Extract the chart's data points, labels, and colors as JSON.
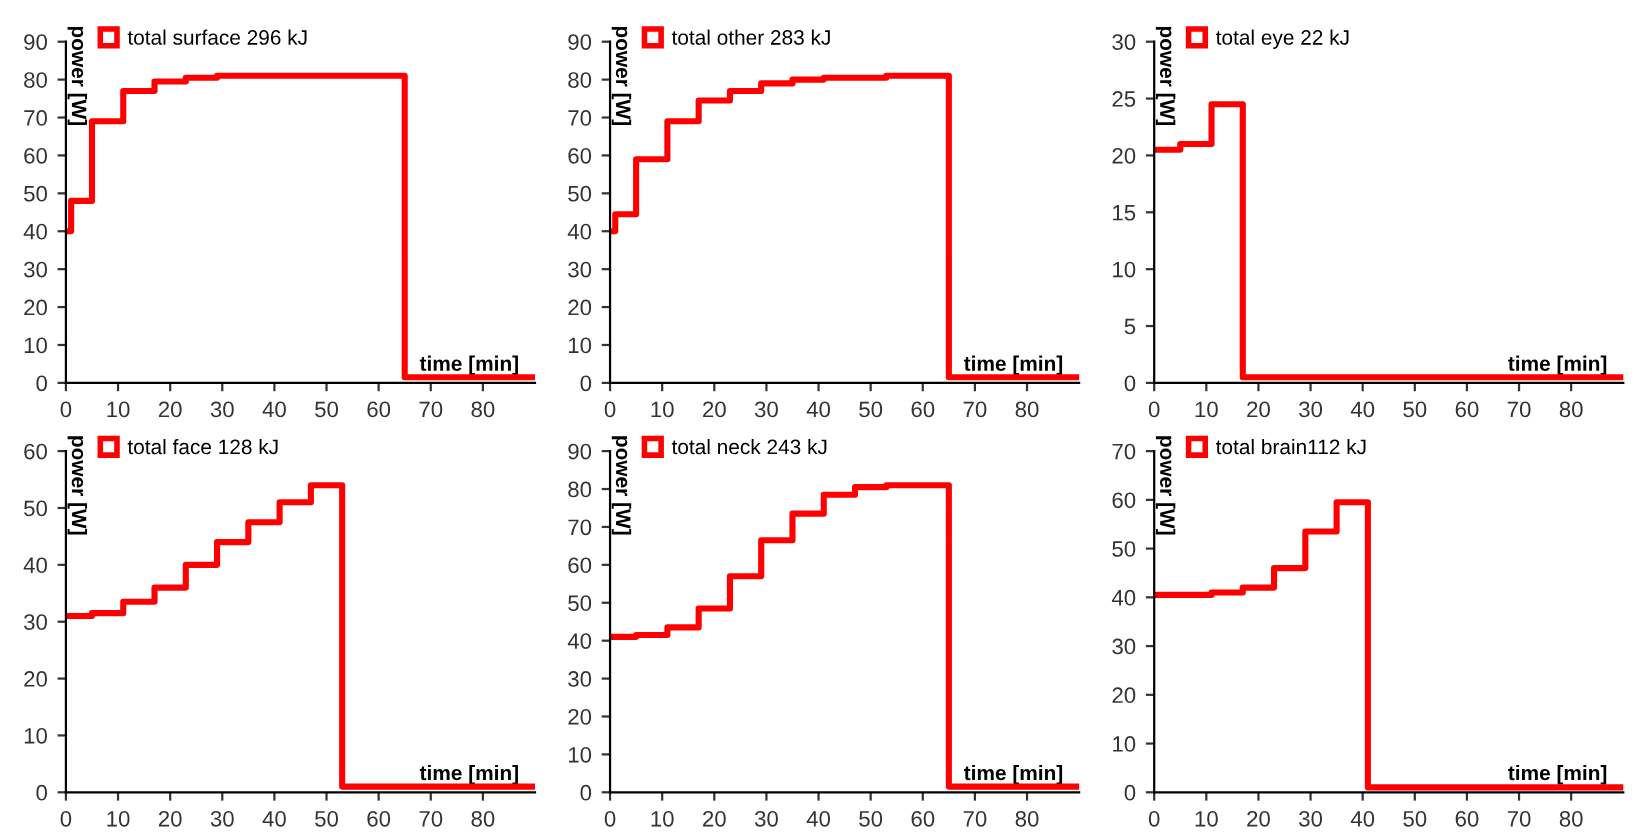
{
  "chart_data": [
    {
      "type": "step",
      "xlabel": "time [min]",
      "ylabel": "power [W]",
      "x": [
        0,
        1,
        5,
        11,
        17,
        23,
        29,
        65,
        90
      ],
      "series": [
        {
          "name": "total surface 296 kJ",
          "color": "#ff0000",
          "values": [
            40,
            48,
            69,
            77,
            79.5,
            80.5,
            81,
            1.5,
            1.5
          ]
        }
      ],
      "xlim": [
        0,
        90
      ],
      "ylim": [
        0,
        90
      ],
      "xticks": [
        0,
        10,
        20,
        30,
        40,
        50,
        60,
        70,
        80
      ],
      "yticks": [
        0,
        10,
        20,
        30,
        40,
        50,
        60,
        70,
        80,
        90
      ],
      "legend": "top left",
      "marker": "none",
      "line_style": "solid",
      "grid": false
    },
    {
      "type": "step",
      "xlabel": "time [min]",
      "ylabel": "power [W]",
      "x": [
        0,
        1,
        5,
        11,
        17,
        23,
        29,
        35,
        41,
        53,
        65,
        90
      ],
      "series": [
        {
          "name": "total other 283 kJ",
          "color": "#ff0000",
          "values": [
            40,
            44.5,
            59,
            69,
            74.5,
            77,
            79,
            80,
            80.5,
            81,
            1.5,
            1.5
          ]
        }
      ],
      "xlim": [
        0,
        90
      ],
      "ylim": [
        0,
        90
      ],
      "xticks": [
        0,
        10,
        20,
        30,
        40,
        50,
        60,
        70,
        80
      ],
      "yticks": [
        0,
        10,
        20,
        30,
        40,
        50,
        60,
        70,
        80,
        90
      ],
      "legend": "top left",
      "marker": "none",
      "line_style": "solid",
      "grid": false
    },
    {
      "type": "step",
      "xlabel": "time [min]",
      "ylabel": "power [W]",
      "x": [
        0,
        5,
        11,
        17,
        90
      ],
      "series": [
        {
          "name": "total eye 22 kJ",
          "color": "#ff0000",
          "values": [
            20.5,
            21,
            24.5,
            0.5,
            0.5
          ]
        }
      ],
      "xlim": [
        0,
        90
      ],
      "ylim": [
        0,
        30
      ],
      "xticks": [
        0,
        10,
        20,
        30,
        40,
        50,
        60,
        70,
        80
      ],
      "yticks": [
        0,
        5,
        10,
        15,
        20,
        25,
        30
      ],
      "legend": "top left",
      "marker": "none",
      "line_style": "solid",
      "grid": false
    },
    {
      "type": "step",
      "xlabel": "time [min]",
      "ylabel": "power [W]",
      "x": [
        0,
        5,
        11,
        17,
        23,
        29,
        35,
        41,
        47,
        53,
        90
      ],
      "series": [
        {
          "name": "total face 128 kJ",
          "color": "#ff0000",
          "values": [
            31,
            31.5,
            33.5,
            36,
            40,
            44,
            47.5,
            51,
            54,
            1,
            1
          ]
        }
      ],
      "xlim": [
        0,
        90
      ],
      "ylim": [
        0,
        60
      ],
      "xticks": [
        0,
        10,
        20,
        30,
        40,
        50,
        60,
        70,
        80
      ],
      "yticks": [
        0,
        10,
        20,
        30,
        40,
        50,
        60
      ],
      "legend": "top left",
      "marker": "none",
      "line_style": "solid",
      "grid": false
    },
    {
      "type": "step",
      "xlabel": "time [min]",
      "ylabel": "power [W]",
      "x": [
        0,
        5,
        11,
        17,
        23,
        29,
        35,
        41,
        47,
        53,
        65,
        90
      ],
      "series": [
        {
          "name": "total neck 243 kJ",
          "color": "#ff0000",
          "values": [
            41,
            41.5,
            43.5,
            48.5,
            57,
            66.5,
            73.5,
            78.5,
            80.5,
            81,
            1.5,
            1.5
          ]
        }
      ],
      "xlim": [
        0,
        90
      ],
      "ylim": [
        0,
        90
      ],
      "xticks": [
        0,
        10,
        20,
        30,
        40,
        50,
        60,
        70,
        80
      ],
      "yticks": [
        0,
        10,
        20,
        30,
        40,
        50,
        60,
        70,
        80,
        90
      ],
      "legend": "top left",
      "marker": "none",
      "line_style": "solid",
      "grid": false
    },
    {
      "type": "step",
      "xlabel": "time [min]",
      "ylabel": "power [W]",
      "x": [
        0,
        11,
        17,
        23,
        29,
        35,
        41,
        90
      ],
      "series": [
        {
          "name": "total brain112 kJ",
          "color": "#ff0000",
          "values": [
            40.5,
            41,
            42,
            46,
            53.5,
            59.5,
            1,
            1
          ]
        }
      ],
      "xlim": [
        0,
        90
      ],
      "ylim": [
        0,
        70
      ],
      "xticks": [
        0,
        10,
        20,
        30,
        40,
        50,
        60,
        70,
        80
      ],
      "yticks": [
        0,
        10,
        20,
        30,
        40,
        50,
        60,
        70
      ],
      "legend": "top left",
      "marker": "none",
      "line_style": "solid",
      "grid": false
    }
  ]
}
